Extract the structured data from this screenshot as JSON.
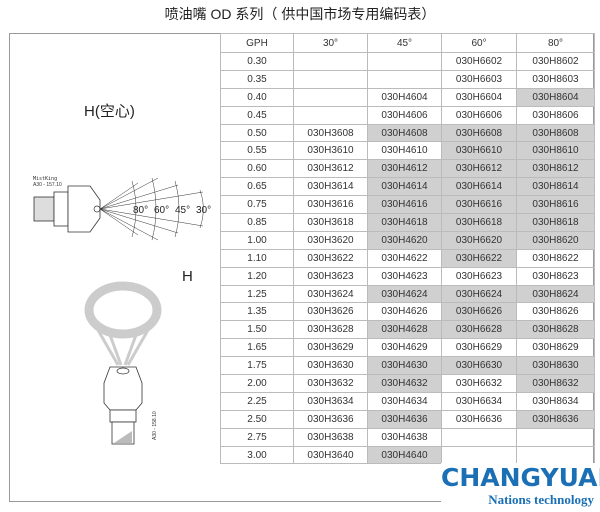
{
  "title": "喷油嘴 OD 系列（ 供中国市场专用编码表）",
  "left_panel": {
    "label_hollow": "H(空心)",
    "label_h": "H",
    "nozzle_brand": "MistKing",
    "nozzle_code_1": "A30 - 157.10",
    "nozzle_code_2": "A30 - 158.10",
    "angles": [
      "80°",
      "60°",
      "45°",
      "30°"
    ]
  },
  "table": {
    "headers": [
      "GPH",
      "30°",
      "45°",
      "60°",
      "80°"
    ],
    "rows": [
      {
        "gph": "0.30",
        "cells": [
          "",
          "",
          "030H6602",
          "030H8602"
        ],
        "shaded": []
      },
      {
        "gph": "0.35",
        "cells": [
          "",
          "",
          "030H6603",
          "030H8603"
        ],
        "shaded": []
      },
      {
        "gph": "0.40",
        "cells": [
          "",
          "030H4604",
          "030H6604",
          "030H8604"
        ],
        "shaded": [
          3
        ]
      },
      {
        "gph": "0.45",
        "cells": [
          "",
          "030H4606",
          "030H6606",
          "030H8606"
        ],
        "shaded": []
      },
      {
        "gph": "0.50",
        "cells": [
          "030H3608",
          "030H4608",
          "030H6608",
          "030H8608"
        ],
        "shaded": [
          1,
          2,
          3
        ]
      },
      {
        "gph": "0.55",
        "cells": [
          "030H3610",
          "030H4610",
          "030H6610",
          "030H8610"
        ],
        "shaded": [
          2,
          3
        ]
      },
      {
        "gph": "0.60",
        "cells": [
          "030H3612",
          "030H4612",
          "030H6612",
          "030H8612"
        ],
        "shaded": [
          1,
          2,
          3
        ]
      },
      {
        "gph": "0.65",
        "cells": [
          "030H3614",
          "030H4614",
          "030H6614",
          "030H8614"
        ],
        "shaded": [
          1,
          2,
          3
        ]
      },
      {
        "gph": "0.75",
        "cells": [
          "030H3616",
          "030H4616",
          "030H6616",
          "030H8616"
        ],
        "shaded": [
          1,
          2,
          3
        ]
      },
      {
        "gph": "0.85",
        "cells": [
          "030H3618",
          "030H4618",
          "030H6618",
          "030H8618"
        ],
        "shaded": [
          1,
          2,
          3
        ]
      },
      {
        "gph": "1.00",
        "cells": [
          "030H3620",
          "030H4620",
          "030H6620",
          "030H8620"
        ],
        "shaded": [
          1,
          2,
          3
        ]
      },
      {
        "gph": "1.10",
        "cells": [
          "030H3622",
          "030H4622",
          "030H6622",
          "030H8622"
        ],
        "shaded": [
          2
        ]
      },
      {
        "gph": "1.20",
        "cells": [
          "030H3623",
          "030H4623",
          "030H6623",
          "030H8623"
        ],
        "shaded": []
      },
      {
        "gph": "1.25",
        "cells": [
          "030H3624",
          "030H4624",
          "030H6624",
          "030H8624"
        ],
        "shaded": [
          1,
          2,
          3
        ]
      },
      {
        "gph": "1.35",
        "cells": [
          "030H3626",
          "030H4626",
          "030H6626",
          "030H8626"
        ],
        "shaded": [
          2
        ]
      },
      {
        "gph": "1.50",
        "cells": [
          "030H3628",
          "030H4628",
          "030H6628",
          "030H8628"
        ],
        "shaded": [
          1,
          2,
          3
        ]
      },
      {
        "gph": "1.65",
        "cells": [
          "030H3629",
          "030H4629",
          "030H6629",
          "030H8629"
        ],
        "shaded": []
      },
      {
        "gph": "1.75",
        "cells": [
          "030H3630",
          "030H4630",
          "030H6630",
          "030H8630"
        ],
        "shaded": [
          1,
          2,
          3
        ]
      },
      {
        "gph": "2.00",
        "cells": [
          "030H3632",
          "030H4632",
          "030H6632",
          "030H8632"
        ],
        "shaded": [
          1,
          3
        ]
      },
      {
        "gph": "2.25",
        "cells": [
          "030H3634",
          "030H4634",
          "030H6634",
          "030H8634"
        ],
        "shaded": []
      },
      {
        "gph": "2.50",
        "cells": [
          "030H3636",
          "030H4636",
          "030H6636",
          "030H8636"
        ],
        "shaded": [
          1,
          3
        ]
      },
      {
        "gph": "2.75",
        "cells": [
          "030H3638",
          "030H4638",
          "",
          ""
        ],
        "shaded": []
      },
      {
        "gph": "3.00",
        "cells": [
          "030H3640",
          "030H4640",
          "",
          ""
        ],
        "shaded": [
          1
        ]
      }
    ]
  },
  "logo": {
    "brand": "CHANGYUAN",
    "tagline": "Nations technology",
    "color": "#1a6fb5"
  },
  "shade_color": "#d0d0d0"
}
